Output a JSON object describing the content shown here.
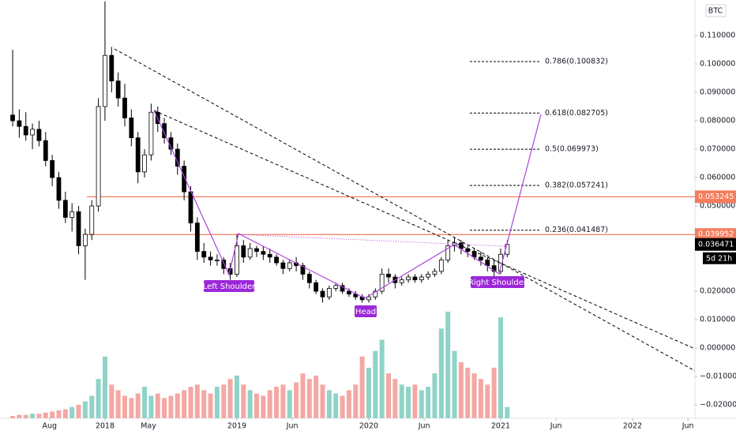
{
  "chart_data": {
    "type": "candlestick",
    "symbol": "BTC",
    "countdown": "5d 21h",
    "x": [
      2017.3,
      2017.35,
      2017.4,
      2017.45,
      2017.5,
      2017.55,
      2017.6,
      2017.65,
      2017.7,
      2017.75,
      2017.8,
      2017.85,
      2017.9,
      2017.95,
      2018.0,
      2018.05,
      2018.1,
      2018.15,
      2018.2,
      2018.25,
      2018.3,
      2018.35,
      2018.4,
      2018.45,
      2018.5,
      2018.55,
      2018.6,
      2018.65,
      2018.7,
      2018.75,
      2018.8,
      2018.85,
      2018.9,
      2018.95,
      2019.0,
      2019.05,
      2019.1,
      2019.15,
      2019.2,
      2019.25,
      2019.3,
      2019.35,
      2019.4,
      2019.45,
      2019.5,
      2019.55,
      2019.6,
      2019.65,
      2019.7,
      2019.75,
      2019.8,
      2019.85,
      2019.9,
      2019.95,
      2020.0,
      2020.05,
      2020.1,
      2020.15,
      2020.2,
      2020.25,
      2020.3,
      2020.35,
      2020.4,
      2020.45,
      2020.5,
      2020.55,
      2020.6,
      2020.65,
      2020.7,
      2020.75,
      2020.8,
      2020.85,
      2020.9,
      2020.95,
      2021.0,
      2021.05
    ],
    "open": [
      0.082,
      0.08,
      0.078,
      0.075,
      0.077,
      0.073,
      0.066,
      0.06,
      0.052,
      0.046,
      0.048,
      0.036,
      0.04,
      0.05,
      0.085,
      0.103,
      0.094,
      0.088,
      0.081,
      0.074,
      0.062,
      0.068,
      0.083,
      0.079,
      0.074,
      0.07,
      0.064,
      0.055,
      0.044,
      0.034,
      0.032,
      0.031,
      0.031,
      0.028,
      0.026,
      0.036,
      0.032,
      0.035,
      0.034,
      0.033,
      0.032,
      0.03,
      0.028,
      0.03,
      0.029,
      0.026,
      0.023,
      0.02,
      0.018,
      0.021,
      0.022,
      0.02,
      0.019,
      0.018,
      0.017,
      0.018,
      0.02,
      0.026,
      0.025,
      0.023,
      0.024,
      0.025,
      0.024,
      0.025,
      0.026,
      0.027,
      0.031,
      0.036,
      0.037,
      0.035,
      0.034,
      0.032,
      0.031,
      0.029,
      0.027,
      0.033
    ],
    "high": [
      0.105,
      0.084,
      0.083,
      0.079,
      0.08,
      0.076,
      0.068,
      0.062,
      0.055,
      0.051,
      0.05,
      0.042,
      0.052,
      0.088,
      0.122,
      0.106,
      0.097,
      0.093,
      0.084,
      0.076,
      0.07,
      0.086,
      0.085,
      0.081,
      0.076,
      0.072,
      0.066,
      0.057,
      0.046,
      0.037,
      0.034,
      0.033,
      0.032,
      0.03,
      0.04,
      0.038,
      0.037,
      0.036,
      0.036,
      0.035,
      0.033,
      0.031,
      0.031,
      0.032,
      0.03,
      0.027,
      0.024,
      0.021,
      0.022,
      0.023,
      0.023,
      0.021,
      0.02,
      0.019,
      0.019,
      0.021,
      0.028,
      0.028,
      0.026,
      0.025,
      0.026,
      0.026,
      0.026,
      0.027,
      0.028,
      0.032,
      0.038,
      0.039,
      0.038,
      0.036,
      0.035,
      0.034,
      0.032,
      0.031,
      0.035,
      0.038
    ],
    "low": [
      0.078,
      0.074,
      0.073,
      0.07,
      0.071,
      0.064,
      0.057,
      0.049,
      0.044,
      0.041,
      0.033,
      0.024,
      0.038,
      0.048,
      0.08,
      0.09,
      0.085,
      0.078,
      0.071,
      0.058,
      0.06,
      0.066,
      0.076,
      0.072,
      0.068,
      0.061,
      0.052,
      0.041,
      0.031,
      0.03,
      0.029,
      0.029,
      0.026,
      0.024,
      0.025,
      0.03,
      0.031,
      0.032,
      0.031,
      0.03,
      0.029,
      0.026,
      0.027,
      0.027,
      0.024,
      0.021,
      0.019,
      0.016,
      0.017,
      0.02,
      0.019,
      0.018,
      0.017,
      0.016,
      0.016,
      0.017,
      0.019,
      0.023,
      0.021,
      0.022,
      0.023,
      0.023,
      0.023,
      0.024,
      0.025,
      0.026,
      0.03,
      0.034,
      0.033,
      0.032,
      0.031,
      0.029,
      0.027,
      0.025,
      0.026,
      0.032
    ],
    "close": [
      0.08,
      0.078,
      0.075,
      0.077,
      0.073,
      0.066,
      0.06,
      0.052,
      0.046,
      0.048,
      0.036,
      0.04,
      0.05,
      0.085,
      0.103,
      0.094,
      0.088,
      0.081,
      0.074,
      0.062,
      0.068,
      0.083,
      0.079,
      0.074,
      0.07,
      0.064,
      0.055,
      0.044,
      0.034,
      0.032,
      0.031,
      0.031,
      0.028,
      0.026,
      0.036,
      0.032,
      0.035,
      0.034,
      0.033,
      0.032,
      0.03,
      0.028,
      0.03,
      0.029,
      0.026,
      0.023,
      0.02,
      0.018,
      0.021,
      0.022,
      0.02,
      0.019,
      0.018,
      0.017,
      0.018,
      0.02,
      0.026,
      0.025,
      0.023,
      0.024,
      0.025,
      0.024,
      0.025,
      0.026,
      0.027,
      0.031,
      0.036,
      0.037,
      0.035,
      0.034,
      0.032,
      0.031,
      0.029,
      0.027,
      0.033,
      0.036471
    ],
    "volume": [
      2,
      3,
      3,
      4,
      4,
      5,
      6,
      7,
      8,
      10,
      12,
      15,
      20,
      35,
      55,
      30,
      25,
      20,
      18,
      22,
      28,
      20,
      22,
      18,
      20,
      22,
      25,
      28,
      30,
      25,
      22,
      28,
      30,
      35,
      38,
      30,
      25,
      22,
      20,
      25,
      28,
      30,
      25,
      32,
      40,
      35,
      38,
      30,
      25,
      22,
      20,
      25,
      30,
      55,
      45,
      60,
      70,
      40,
      35,
      30,
      28,
      30,
      25,
      28,
      40,
      80,
      95,
      60,
      50,
      45,
      40,
      35,
      30,
      45,
      90,
      10
    ],
    "up_color": "#ffffff",
    "down_color": "#000000",
    "up_volume_color": "#8fd3c8",
    "down_volume_color": "#f4a8a4",
    "xlim": [
      2017.204,
      2022.473
    ],
    "ylim": [
      -0.0247,
      0.1225
    ],
    "xticks": [
      {
        "value": 2017.58,
        "label": "Aug"
      },
      {
        "value": 2018.0,
        "label": "2018"
      },
      {
        "value": 2018.33,
        "label": "May"
      },
      {
        "value": 2019.0,
        "label": "2019"
      },
      {
        "value": 2019.42,
        "label": "Jun"
      },
      {
        "value": 2020.0,
        "label": "2020"
      },
      {
        "value": 2020.42,
        "label": "Jun"
      },
      {
        "value": 2021.0,
        "label": "2021"
      },
      {
        "value": 2021.42,
        "label": "Jun"
      },
      {
        "value": 2022.0,
        "label": "2022"
      },
      {
        "value": 2022.42,
        "label": "Jun"
      }
    ],
    "yticks": [
      {
        "value": 0.11,
        "label": "0.110000"
      },
      {
        "value": 0.1,
        "label": "0.100000"
      },
      {
        "value": 0.09,
        "label": "0.090000"
      },
      {
        "value": 0.08,
        "label": "0.080000"
      },
      {
        "value": 0.07,
        "label": "0.070000"
      },
      {
        "value": 0.06,
        "label": "0.060000"
      },
      {
        "value": 0.05,
        "label": "0.050000"
      },
      {
        "value": 0.02,
        "label": "0.020000"
      },
      {
        "value": 0.01,
        "label": "0.010000"
      },
      {
        "value": 0,
        "label": "0.000000"
      },
      {
        "value": -0.01,
        "label": "−0.010000"
      },
      {
        "value": -0.02,
        "label": "−0.020000"
      }
    ],
    "price_levels": [
      0.053245,
      0.039952
    ],
    "level_color": "#f57c5c",
    "fib_levels": [
      {
        "value": 0.100832,
        "label": "0.786(0.100832)"
      },
      {
        "value": 0.082705,
        "label": "0.618(0.082705)"
      },
      {
        "value": 0.069973,
        "label": "0.5(0.069973)"
      },
      {
        "value": 0.057241,
        "label": "0.382(0.057241)"
      },
      {
        "value": 0.041487,
        "label": "0.236(0.041487)"
      }
    ],
    "annotations": [
      "Left Shoulder",
      "Head",
      "Right Shoulder"
    ]
  }
}
